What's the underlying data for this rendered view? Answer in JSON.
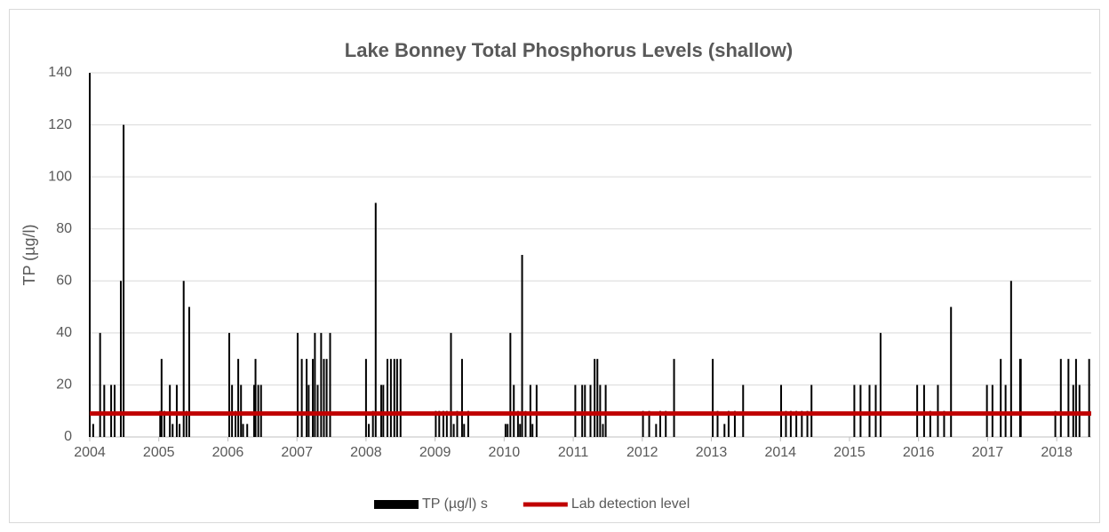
{
  "chart_data": {
    "type": "bar",
    "title": "Lake Bonney Total Phosphorus Levels (shallow)",
    "ylabel": "TP (µg/l)",
    "xlim": [
      2004,
      2018.5
    ],
    "xticks": [
      2004,
      2005,
      2006,
      2007,
      2008,
      2009,
      2010,
      2011,
      2012,
      2013,
      2014,
      2015,
      2016,
      2017,
      2018
    ],
    "ylim": [
      0,
      140
    ],
    "yticks": [
      0,
      20,
      40,
      60,
      80,
      100,
      120,
      140
    ],
    "grid": true,
    "legend": "bottom",
    "series": [
      {
        "name": "TP (µg/l) s",
        "color": "#000000",
        "type": "bar",
        "x": [
          2004.0,
          2004.05,
          2004.15,
          2004.21,
          2004.31,
          2004.36,
          2004.45,
          2004.49,
          2005.02,
          2005.04,
          2005.08,
          2005.16,
          2005.2,
          2005.26,
          2005.3,
          2005.36,
          2005.4,
          2005.44,
          2006.02,
          2006.06,
          2006.11,
          2006.15,
          2006.19,
          2006.22,
          2006.28,
          2006.38,
          2006.4,
          2006.44,
          2006.48,
          2007.01,
          2007.07,
          2007.14,
          2007.17,
          2007.23,
          2007.26,
          2007.3,
          2007.35,
          2007.39,
          2007.43,
          2007.48,
          2008.0,
          2008.04,
          2008.1,
          2008.14,
          2008.22,
          2008.25,
          2008.31,
          2008.36,
          2008.41,
          2008.45,
          2008.5,
          2009.01,
          2009.06,
          2009.12,
          2009.17,
          2009.23,
          2009.27,
          2009.32,
          2009.39,
          2009.42,
          2009.48,
          2010.02,
          2010.05,
          2010.09,
          2010.14,
          2010.2,
          2010.23,
          2010.26,
          2010.31,
          2010.38,
          2010.41,
          2010.47,
          2011.03,
          2011.13,
          2011.17,
          2011.25,
          2011.31,
          2011.35,
          2011.39,
          2011.43,
          2011.47,
          2012.01,
          2012.1,
          2012.2,
          2012.26,
          2012.34,
          2012.46,
          2013.02,
          2013.09,
          2013.19,
          2013.25,
          2013.34,
          2013.46,
          2014.01,
          2014.08,
          2014.15,
          2014.23,
          2014.31,
          2014.39,
          2014.45,
          2015.07,
          2015.16,
          2015.29,
          2015.38,
          2015.45,
          2015.98,
          2016.08,
          2016.17,
          2016.28,
          2016.37,
          2016.47,
          2016.99,
          2017.07,
          2017.19,
          2017.26,
          2017.34,
          2017.47,
          2017.48,
          2017.98,
          2018.06,
          2018.17,
          2018.24,
          2018.28,
          2018.33,
          2018.47
        ],
        "values": [
          140,
          5,
          40,
          20,
          20,
          20,
          60,
          120,
          10,
          30,
          10,
          20,
          5,
          20,
          5,
          60,
          10,
          50,
          40,
          20,
          10,
          30,
          20,
          5,
          5,
          20,
          30,
          20,
          20,
          40,
          30,
          30,
          20,
          30,
          40,
          20,
          40,
          30,
          30,
          40,
          30,
          5,
          10,
          90,
          20,
          20,
          30,
          30,
          30,
          30,
          30,
          10,
          10,
          10,
          10,
          40,
          5,
          10,
          30,
          5,
          10,
          5,
          5,
          40,
          20,
          10,
          5,
          70,
          10,
          20,
          5,
          20,
          20,
          20,
          20,
          20,
          30,
          30,
          20,
          5,
          20,
          10,
          10,
          5,
          10,
          10,
          30,
          30,
          10,
          5,
          10,
          10,
          20,
          20,
          10,
          10,
          10,
          10,
          10,
          20,
          20,
          20,
          20,
          20,
          40,
          20,
          20,
          10,
          20,
          10,
          50,
          20,
          20,
          30,
          20,
          60,
          30,
          30,
          10,
          30,
          30,
          20,
          30,
          20,
          30
        ]
      },
      {
        "name": "Lab detection level",
        "color": "#c00000",
        "type": "line",
        "x": [
          2004,
          2018.5
        ],
        "values": [
          9,
          9
        ]
      }
    ]
  }
}
